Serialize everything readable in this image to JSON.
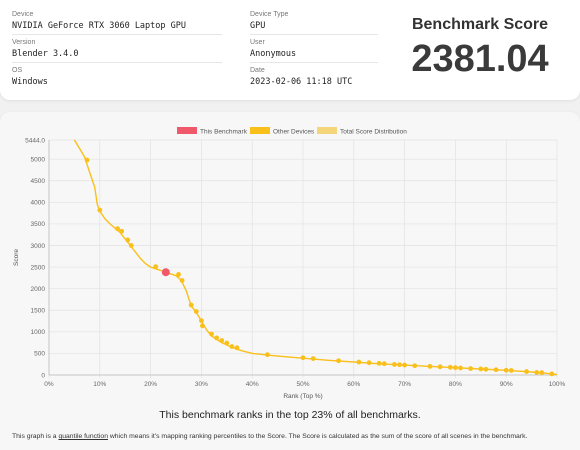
{
  "info": {
    "device_label": "Device",
    "device_value": "NVIDIA GeForce RTX 3060 Laptop GPU",
    "version_label": "Version",
    "version_value": "Blender 3.4.0",
    "os_label": "OS",
    "os_value": "Windows",
    "device_type_label": "Device Type",
    "device_type_value": "GPU",
    "user_label": "User",
    "user_value": "Anonymous",
    "date_label": "Date",
    "date_value": "2023-02-06 11:18 UTC"
  },
  "score": {
    "title": "Benchmark Score",
    "value": "2381.04"
  },
  "legend": {
    "this_benchmark": "This Benchmark",
    "other_devices": "Other Devices",
    "distribution": "Total Score Distribution"
  },
  "colors": {
    "this_benchmark": "#f0596a",
    "other_devices": "#f9bf1a",
    "distribution": "#f5d57a",
    "grid": "#e2e2e2"
  },
  "chart_data": {
    "type": "line",
    "xlabel": "Rank (Top %)",
    "ylabel": "Score",
    "xlim": [
      0,
      100
    ],
    "ylim": [
      0,
      5444.0
    ],
    "x_ticks": [
      "0%",
      "10%",
      "20%",
      "30%",
      "40%",
      "50%",
      "60%",
      "70%",
      "80%",
      "90%",
      "100%"
    ],
    "y_ticks": [
      "0",
      "500",
      "1000",
      "1500",
      "2000",
      "2500",
      "3000",
      "3500",
      "4000",
      "4500",
      "5000",
      "5444.0"
    ],
    "y_tick_values": [
      0,
      500,
      1000,
      1500,
      2000,
      2500,
      3000,
      3500,
      4000,
      4500,
      5000,
      5444
    ],
    "grid": true,
    "legend_position": "top",
    "distribution_curve": [
      [
        5,
        5444
      ],
      [
        6,
        5250
      ],
      [
        7,
        5050
      ],
      [
        8,
        4700
      ],
      [
        9,
        4350
      ],
      [
        9.5,
        3950
      ],
      [
        10,
        3800
      ],
      [
        11,
        3620
      ],
      [
        12,
        3500
      ],
      [
        13,
        3400
      ],
      [
        14,
        3300
      ],
      [
        15,
        3150
      ],
      [
        16,
        3000
      ],
      [
        17,
        2850
      ],
      [
        18,
        2700
      ],
      [
        19,
        2580
      ],
      [
        20,
        2500
      ],
      [
        21,
        2460
      ],
      [
        23,
        2381
      ],
      [
        25,
        2300
      ],
      [
        26,
        2200
      ],
      [
        27,
        1950
      ],
      [
        28,
        1600
      ],
      [
        29,
        1450
      ],
      [
        30,
        1250
      ],
      [
        31,
        1050
      ],
      [
        32,
        900
      ],
      [
        34,
        750
      ],
      [
        36,
        640
      ],
      [
        38,
        560
      ],
      [
        40,
        500
      ],
      [
        43,
        460
      ],
      [
        47,
        420
      ],
      [
        50,
        390
      ],
      [
        55,
        340
      ],
      [
        60,
        300
      ],
      [
        65,
        260
      ],
      [
        70,
        230
      ],
      [
        75,
        200
      ],
      [
        80,
        170
      ],
      [
        85,
        140
      ],
      [
        90,
        110
      ],
      [
        95,
        70
      ],
      [
        98,
        40
      ],
      [
        100,
        10
      ]
    ],
    "other_devices": [
      [
        7.5,
        4980
      ],
      [
        10,
        3820
      ],
      [
        13.5,
        3390
      ],
      [
        14.3,
        3330
      ],
      [
        15.5,
        3130
      ],
      [
        16.2,
        3000
      ],
      [
        21,
        2510
      ],
      [
        25.5,
        2330
      ],
      [
        26.2,
        2190
      ],
      [
        28,
        1620
      ],
      [
        29,
        1470
      ],
      [
        30,
        1260
      ],
      [
        30.2,
        1140
      ],
      [
        32,
        950
      ],
      [
        33,
        860
      ],
      [
        34,
        800
      ],
      [
        35,
        740
      ],
      [
        36,
        660
      ],
      [
        37,
        630
      ],
      [
        43,
        470
      ],
      [
        50,
        400
      ],
      [
        52,
        380
      ],
      [
        57,
        330
      ],
      [
        61,
        300
      ],
      [
        63,
        285
      ],
      [
        65,
        270
      ],
      [
        66,
        262
      ],
      [
        68,
        245
      ],
      [
        69,
        238
      ],
      [
        70,
        230
      ],
      [
        72,
        215
      ],
      [
        75,
        200
      ],
      [
        77,
        190
      ],
      [
        79,
        178
      ],
      [
        80,
        170
      ],
      [
        81,
        162
      ],
      [
        83,
        150
      ],
      [
        85,
        140
      ],
      [
        86,
        132
      ],
      [
        88,
        122
      ],
      [
        90,
        110
      ],
      [
        91,
        105
      ],
      [
        94,
        80
      ],
      [
        96,
        60
      ],
      [
        97,
        55
      ],
      [
        99,
        25
      ]
    ],
    "this_benchmark": [
      23,
      2381.04
    ]
  },
  "rank_text": "This benchmark ranks in the top 23% of all benchmarks.",
  "footnote": {
    "prefix": "This graph is a ",
    "link": "quantile function",
    "suffix": " which means it's mapping ranking percentiles to the Score. The Score is calculated as the sum of the score of all scenes in the benchmark."
  }
}
